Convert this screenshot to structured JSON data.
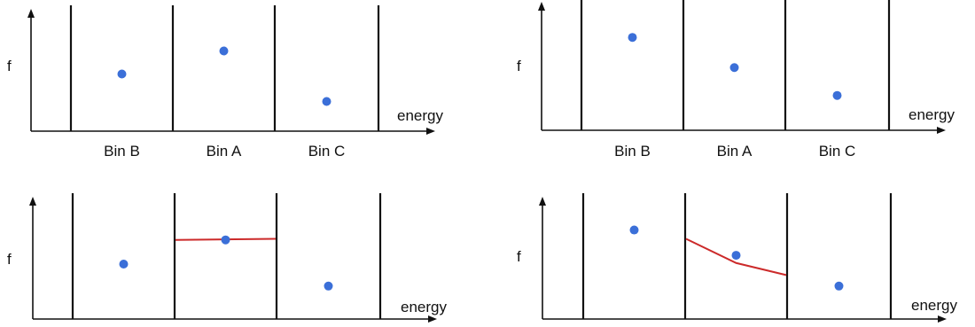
{
  "colors": {
    "axis": "#111111",
    "divider": "#111111",
    "point": "#3b6fd8",
    "fit_line": "#cc2a2a"
  },
  "axis_labels": {
    "y": "f",
    "x": "energy"
  },
  "bin_labels": [
    "Bin B",
    "Bin A",
    "Bin C"
  ],
  "panels": [
    {
      "id": "top-left",
      "show_bin_labels": true,
      "points": [
        0.52,
        0.73,
        0.27
      ],
      "fit_line": null
    },
    {
      "id": "top-right",
      "show_bin_labels": true,
      "points": [
        0.8,
        0.54,
        0.3
      ],
      "fit_line": null
    },
    {
      "id": "bottom-left",
      "show_bin_labels": false,
      "points": [
        0.5,
        0.72,
        0.3
      ],
      "fit_line": {
        "bin": 1,
        "start": 0.72,
        "end": 0.73
      }
    },
    {
      "id": "bottom-right",
      "show_bin_labels": false,
      "points": [
        0.81,
        0.58,
        0.3
      ],
      "fit_line": {
        "bin": 1,
        "start": 0.73,
        "mid": 0.51,
        "end": 0.4
      }
    }
  ]
}
